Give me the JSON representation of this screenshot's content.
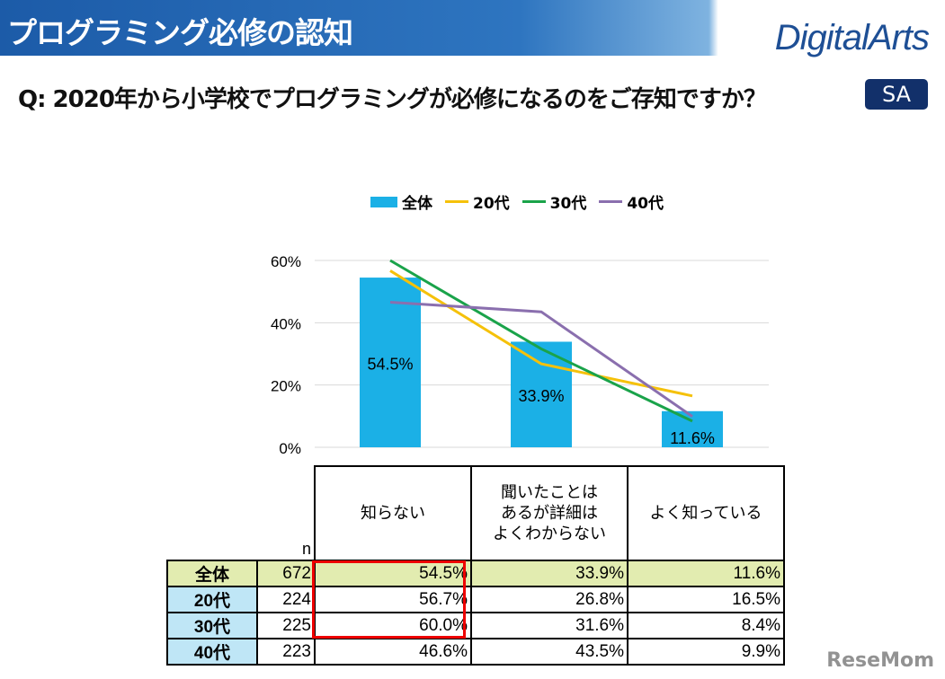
{
  "header": {
    "title": "プログラミング必修の認知",
    "logo": "DigitalArts"
  },
  "question": "Q:  2020年から小学校でプログラミングが必修になるのをご存知ですか？",
  "badge": "SA",
  "colors": {
    "全体": "#1bb0e6",
    "20代": "#f5c10a",
    "30代": "#1aa34a",
    "40代": "#8a6fae"
  },
  "chart_data": {
    "type": "bar+line",
    "categories": [
      "知らない",
      "聞いたことはあるが詳細はよくわからない",
      "よく知っている"
    ],
    "series": [
      {
        "name": "全体",
        "kind": "bar",
        "values": [
          54.5,
          33.9,
          11.6
        ]
      },
      {
        "name": "20代",
        "kind": "line",
        "values": [
          56.7,
          26.8,
          16.5
        ]
      },
      {
        "name": "30代",
        "kind": "line",
        "values": [
          60.0,
          31.6,
          8.4
        ]
      },
      {
        "name": "40代",
        "kind": "line",
        "values": [
          46.6,
          43.5,
          9.9
        ]
      }
    ],
    "yticks": [
      "0%",
      "20%",
      "40%",
      "60%"
    ],
    "ylim": [
      0,
      60
    ],
    "grid": true,
    "legend": "top",
    "data_labels": [
      "54.5%",
      "33.9%",
      "11.6%"
    ]
  },
  "table": {
    "n_label": "n",
    "headers": [
      "知らない",
      "聞いたことは\nあるが詳細は\nよくわからない",
      "よく知っている"
    ],
    "rows": [
      {
        "label": "全体",
        "n": "672",
        "v": [
          "54.5%",
          "33.9%",
          "11.6%"
        ]
      },
      {
        "label": "20代",
        "n": "224",
        "v": [
          "56.7%",
          "26.8%",
          "16.5%"
        ]
      },
      {
        "label": "30代",
        "n": "225",
        "v": [
          "60.0%",
          "31.6%",
          "8.4%"
        ]
      },
      {
        "label": "40代",
        "n": "223",
        "v": [
          "46.6%",
          "43.5%",
          "9.9%"
        ]
      }
    ]
  },
  "watermark": "ReseMom"
}
